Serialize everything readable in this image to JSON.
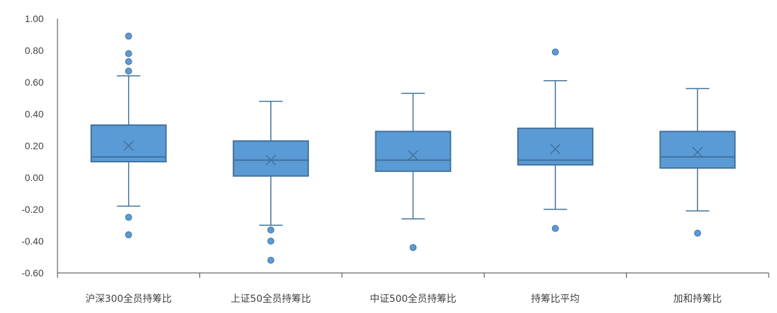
{
  "chart_data": {
    "type": "box",
    "y_ticks": [
      "1.00",
      "0.80",
      "0.60",
      "0.40",
      "0.20",
      "0.00",
      "-0.20",
      "-0.40",
      "-0.60"
    ],
    "y_tick_values": [
      1.0,
      0.8,
      0.6,
      0.4,
      0.2,
      0.0,
      -0.2,
      -0.4,
      -0.6
    ],
    "ylim": [
      -0.6,
      1.0
    ],
    "grid": false,
    "legend": "none",
    "categories": [
      "沪深300全员持筹比",
      "上证50全员持筹比",
      "中证500全员持筹比",
      "持筹比平均",
      "加和持筹比"
    ],
    "boxes": [
      {
        "whisker_low": -0.18,
        "q1": 0.1,
        "median": 0.13,
        "mean": 0.2,
        "q3": 0.33,
        "whisker_high": 0.64,
        "outliers": [
          0.89,
          0.78,
          0.73,
          0.67,
          -0.25,
          -0.36
        ]
      },
      {
        "whisker_low": -0.3,
        "q1": 0.01,
        "median": 0.11,
        "mean": 0.11,
        "q3": 0.23,
        "whisker_high": 0.48,
        "outliers": [
          -0.33,
          -0.4,
          -0.52
        ]
      },
      {
        "whisker_low": -0.26,
        "q1": 0.04,
        "median": 0.11,
        "mean": 0.14,
        "q3": 0.29,
        "whisker_high": 0.53,
        "outliers": [
          -0.44
        ]
      },
      {
        "whisker_low": -0.2,
        "q1": 0.08,
        "median": 0.11,
        "mean": 0.18,
        "q3": 0.31,
        "whisker_high": 0.61,
        "outliers": [
          0.79,
          -0.32
        ]
      },
      {
        "whisker_low": -0.21,
        "q1": 0.06,
        "median": 0.13,
        "mean": 0.16,
        "q3": 0.29,
        "whisker_high": 0.56,
        "outliers": [
          -0.35
        ]
      }
    ],
    "colors": {
      "box_fill": "#5b9bd5",
      "box_stroke": "#41719c",
      "axis": "#404040",
      "text": "#404040"
    }
  }
}
